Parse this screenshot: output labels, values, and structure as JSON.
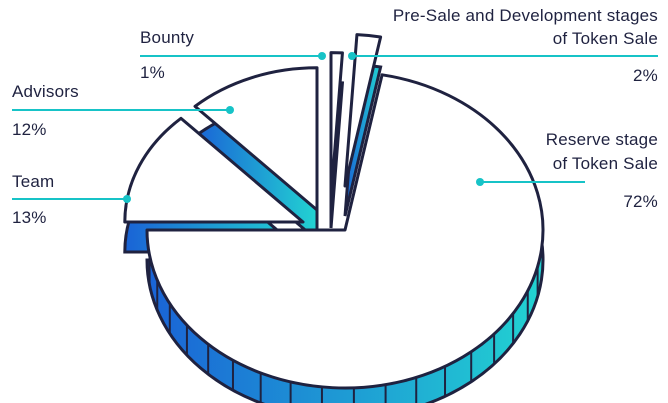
{
  "colors": {
    "outline": "#1f2240",
    "face": "#ffffff",
    "side_dark": "#1a63d6",
    "side_light": "#22d3d2",
    "leader": "#17c3c7",
    "text": "#1f2240"
  },
  "chart_data": {
    "type": "pie",
    "style": "3d-exploded",
    "legend": "none",
    "slices": [
      {
        "label": "Reserve stage\nof Token Sale",
        "label_lines": [
          "Reserve stage",
          "of Token Sale"
        ],
        "value": 72,
        "value_label": "72%"
      },
      {
        "label": "Team",
        "label_lines": [
          "Team"
        ],
        "value": 13,
        "value_label": "13%"
      },
      {
        "label": "Advisors",
        "label_lines": [
          "Advisors"
        ],
        "value": 12,
        "value_label": "12%"
      },
      {
        "label": "Bounty",
        "label_lines": [
          "Bounty"
        ],
        "value": 1,
        "value_label": "1%"
      },
      {
        "label": "Pre-Sale and Development stages\nof Token Sale",
        "label_lines": [
          "Pre-Sale and Development stages",
          "of Token Sale"
        ],
        "value": 2,
        "value_label": "2%"
      }
    ]
  }
}
